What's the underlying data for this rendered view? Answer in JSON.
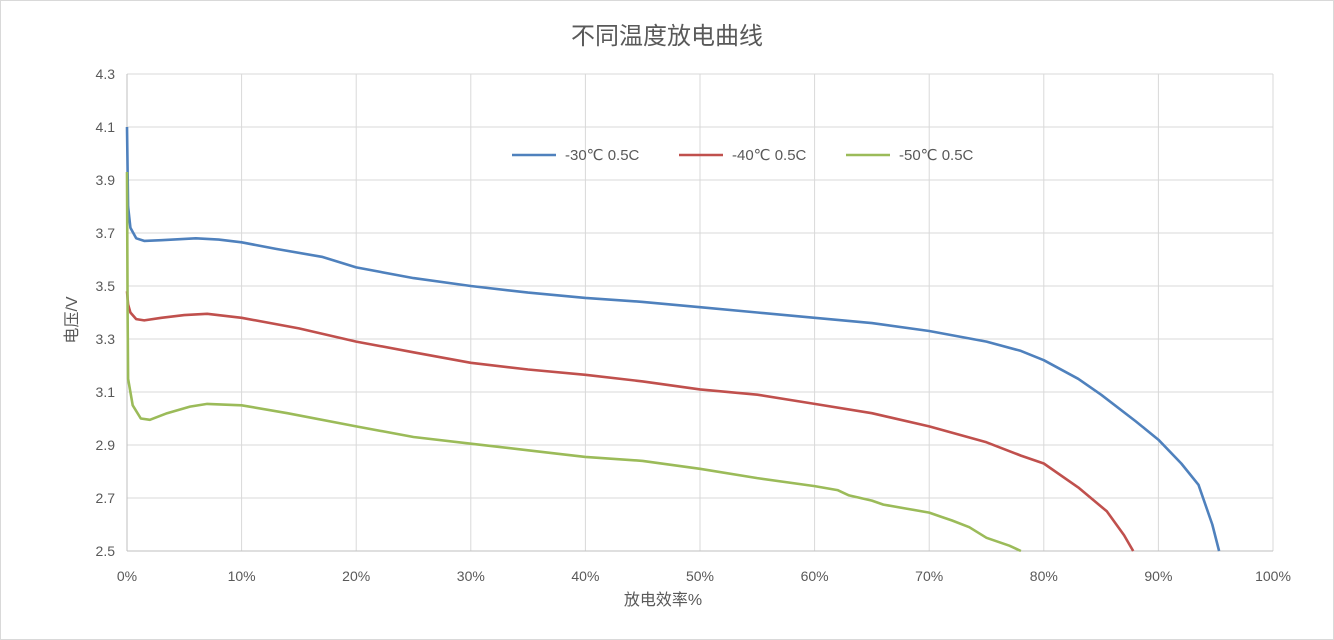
{
  "chart_data": {
    "type": "line",
    "title": "不同温度放电曲线",
    "xlabel": "放电效率%",
    "ylabel": "电压/V",
    "xlim": [
      0,
      100
    ],
    "ylim": [
      2.5,
      4.3
    ],
    "x_ticks": [
      "0%",
      "10%",
      "20%",
      "30%",
      "40%",
      "50%",
      "60%",
      "70%",
      "80%",
      "90%",
      "100%"
    ],
    "y_ticks": [
      "2.5",
      "2.7",
      "2.9",
      "3.1",
      "3.3",
      "3.5",
      "3.7",
      "3.9",
      "4.1",
      "4.3"
    ],
    "grid": true,
    "legend_position": "top-center",
    "series": [
      {
        "name": "-30℃ 0.5C",
        "color": "#4f81bd",
        "x": [
          0,
          0.1,
          0.3,
          0.8,
          1.5,
          3,
          6,
          8,
          10,
          13,
          17,
          20,
          25,
          30,
          35,
          40,
          45,
          50,
          55,
          60,
          65,
          70,
          75,
          78,
          80,
          83,
          85,
          88,
          90,
          92,
          93.5,
          94.7,
          95.3
        ],
        "y": [
          4.1,
          3.8,
          3.72,
          3.68,
          3.67,
          3.673,
          3.68,
          3.675,
          3.665,
          3.64,
          3.61,
          3.57,
          3.53,
          3.5,
          3.475,
          3.455,
          3.44,
          3.42,
          3.4,
          3.38,
          3.36,
          3.33,
          3.29,
          3.255,
          3.22,
          3.15,
          3.09,
          2.99,
          2.92,
          2.83,
          2.75,
          2.6,
          2.5
        ]
      },
      {
        "name": "-40℃ 0.5C",
        "color": "#c0504d",
        "x": [
          0,
          0.1,
          0.3,
          0.8,
          1.5,
          3,
          5,
          7,
          10,
          15,
          20,
          25,
          30,
          35,
          40,
          45,
          50,
          55,
          60,
          65,
          70,
          75,
          78,
          80,
          83,
          85.5,
          87,
          87.8
        ],
        "y": [
          3.48,
          3.43,
          3.4,
          3.375,
          3.37,
          3.38,
          3.39,
          3.395,
          3.38,
          3.34,
          3.29,
          3.25,
          3.21,
          3.185,
          3.165,
          3.14,
          3.11,
          3.09,
          3.055,
          3.02,
          2.97,
          2.91,
          2.86,
          2.83,
          2.74,
          2.65,
          2.56,
          2.5
        ]
      },
      {
        "name": "-50℃ 0.5C",
        "color": "#9bbb59",
        "x": [
          0,
          0.05,
          0.1,
          0.5,
          1.2,
          2,
          3.5,
          5.5,
          7,
          10,
          14,
          20,
          25,
          30,
          35,
          38,
          40,
          45,
          50,
          55,
          60,
          62,
          63,
          65,
          66,
          68,
          70,
          71,
          72,
          73.5,
          75,
          77,
          78
        ],
        "y": [
          3.93,
          3.4,
          3.15,
          3.05,
          3.0,
          2.995,
          3.02,
          3.045,
          3.055,
          3.05,
          3.02,
          2.97,
          2.93,
          2.905,
          2.88,
          2.865,
          2.855,
          2.84,
          2.81,
          2.775,
          2.745,
          2.73,
          2.71,
          2.69,
          2.675,
          2.66,
          2.645,
          2.63,
          2.615,
          2.59,
          2.55,
          2.52,
          2.5
        ]
      }
    ]
  }
}
